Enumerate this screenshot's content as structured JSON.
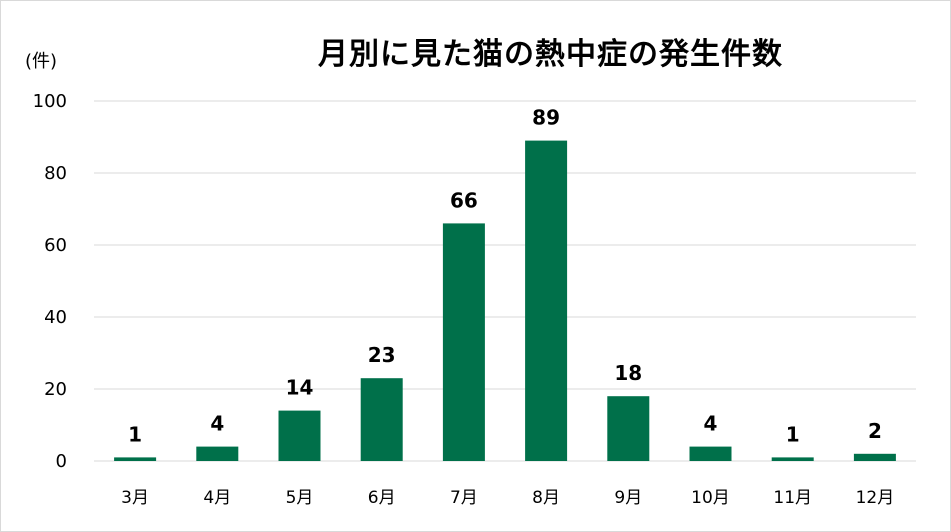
{
  "chart_data": {
    "type": "bar",
    "title": "月別に見た猫の熱中症の発生件数",
    "ylabel": "(件)",
    "xlabel": "",
    "categories": [
      "3月",
      "4月",
      "5月",
      "6月",
      "7月",
      "8月",
      "9月",
      "10月",
      "11月",
      "12月"
    ],
    "values": [
      1,
      4,
      14,
      23,
      66,
      89,
      18,
      4,
      1,
      2
    ],
    "ylim": [
      0,
      100
    ],
    "yticks": [
      "0",
      "20",
      "40",
      "60",
      "80",
      "100"
    ],
    "grid": true,
    "legend": "none",
    "bar_color": "#00704a",
    "grid_color": "#d9d9d9"
  }
}
